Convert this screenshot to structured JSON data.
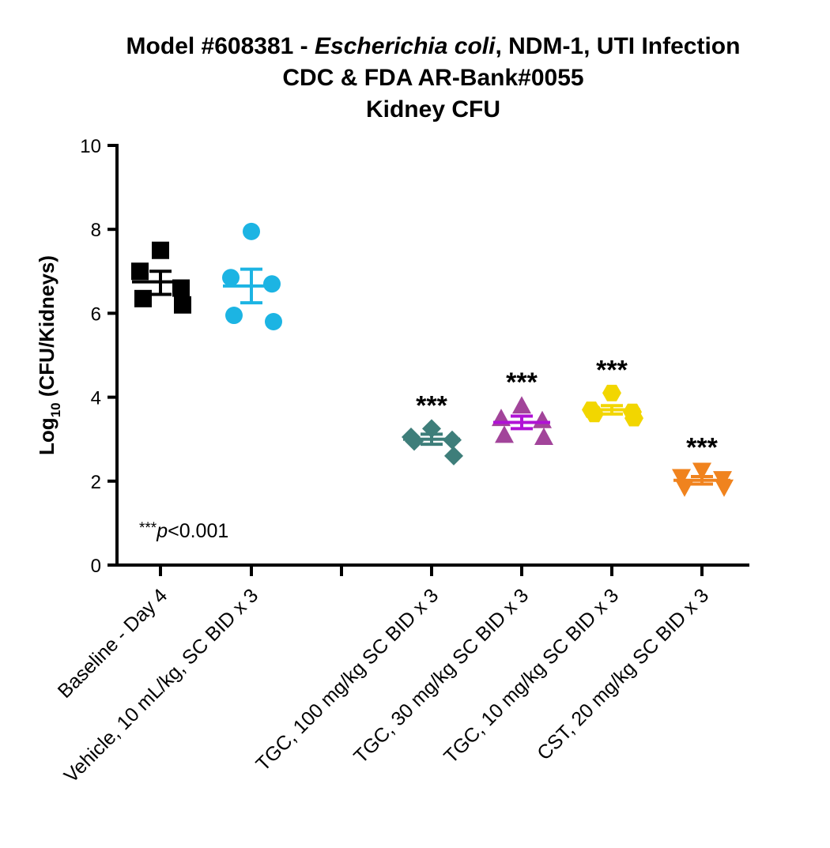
{
  "chart_data": {
    "type": "scatter",
    "title_lines": [
      {
        "parts": [
          {
            "text": "Model #608381 - ",
            "italic": false
          },
          {
            "text": "Escherichia coli",
            "italic": true
          },
          {
            "text": ", NDM-1, UTI Infection",
            "italic": false
          }
        ]
      },
      {
        "parts": [
          {
            "text": "CDC & FDA AR-Bank#0055",
            "italic": false
          }
        ]
      },
      {
        "parts": [
          {
            "text": "Kidney CFU",
            "italic": false
          }
        ]
      }
    ],
    "ylabel_main": "Log",
    "ylabel_sub": "10",
    "ylabel_rest": " (CFU/Kidneys)",
    "ylim": [
      0,
      10
    ],
    "yticks": [
      0,
      2,
      4,
      6,
      8,
      10
    ],
    "grid": false,
    "legend": "none",
    "categories": [
      "Baseline - Day 4",
      "Vehicle, 10 mL/kg, SC BID x 3",
      "",
      "TGC, 100 mg/kg SC BID x 3",
      "TGC, 30 mg/kg SC BID x 3",
      "TGC, 10 mg/kg SC BID x 3",
      "CST, 20 mg/kg SC BID x 3"
    ],
    "groups": [
      {
        "category_index": 0,
        "marker": "square",
        "color": "#000000",
        "values": [
          7.5,
          7.0,
          6.6,
          6.35,
          6.2
        ],
        "mean": 6.75,
        "sem_low": 6.45,
        "sem_high": 7.0,
        "significance": ""
      },
      {
        "category_index": 1,
        "marker": "circle",
        "color": "#1CB4E3",
        "values": [
          7.95,
          6.85,
          6.7,
          5.95,
          5.8
        ],
        "mean": 6.65,
        "sem_low": 6.25,
        "sem_high": 7.05,
        "significance": ""
      },
      {
        "category_index": 3,
        "marker": "diamond",
        "color": "#3E7E7A",
        "values": [
          3.25,
          3.05,
          2.98,
          2.95,
          2.6
        ],
        "mean": 3.0,
        "sem_low": 2.88,
        "sem_high": 3.12,
        "significance": "***"
      },
      {
        "category_index": 4,
        "marker": "triangle-up",
        "color": "#A2449A",
        "values": [
          3.8,
          3.5,
          3.45,
          3.1,
          3.05
        ],
        "mean": 3.4,
        "sem_low": 3.25,
        "sem_high": 3.55,
        "significance": "***"
      },
      {
        "category_index": 5,
        "marker": "hexagon",
        "color": "#F2D600",
        "values": [
          4.1,
          3.7,
          3.65,
          3.6,
          3.5
        ],
        "mean": 3.7,
        "sem_low": 3.6,
        "sem_high": 3.8,
        "significance": "***"
      },
      {
        "category_index": 6,
        "marker": "triangle-down",
        "color": "#F0831E",
        "values": [
          2.25,
          2.1,
          2.05,
          1.85,
          1.85
        ],
        "mean": 2.02,
        "sem_low": 1.93,
        "sem_high": 2.11,
        "significance": "***"
      }
    ],
    "mean_bar_colors": [
      "#000000",
      "#1CB4E3",
      "#3E7E7A",
      "#B012D6",
      "#F2D600",
      "#F0831E"
    ],
    "annotation": {
      "prefix": "***",
      "italic": "p",
      "suffix": "<0.001"
    }
  }
}
